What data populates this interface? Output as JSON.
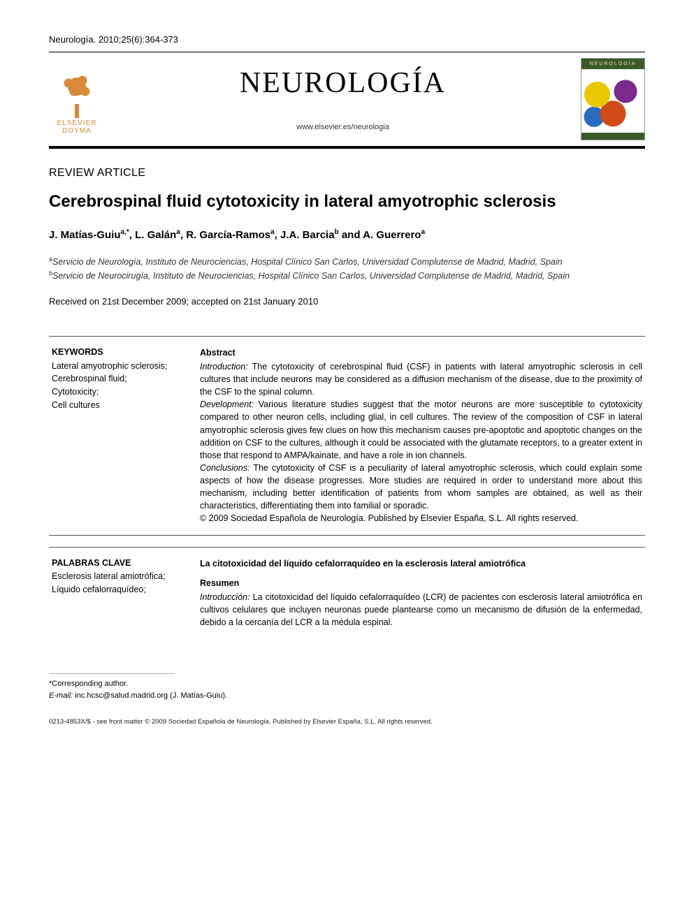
{
  "citation": "Neurología. 2010;25(6):364-373",
  "publisher": {
    "name_line1": "ELSEVIER",
    "name_line2": "DOYMA",
    "logo_color": "#d88a3a"
  },
  "journal": {
    "title": "NEUROLOGÍA",
    "url": "www.elsevier.es/neurologia",
    "cover_label": "NEUROLOGÍA"
  },
  "article_type": "REVIEW ARTICLE",
  "article_title": "Cerebrospinal fluid cytotoxicity in lateral amyotrophic sclerosis",
  "authors_html": "J. Matías-Guiu",
  "authors": [
    {
      "name": "J. Matías-Guiu",
      "sup": "a,*"
    },
    {
      "name": "L. Galán",
      "sup": "a"
    },
    {
      "name": "R. García-Ramos",
      "sup": "a"
    },
    {
      "name": "J.A. Barcia",
      "sup": "b"
    },
    {
      "name": "A. Guerrero",
      "sup": "a"
    }
  ],
  "affiliations": [
    {
      "sup": "a",
      "text": "Servicio de Neurología, Instituto de Neurociencias, Hospital Clínico San Carlos, Universidad Complutense de Madrid, Madrid, Spain"
    },
    {
      "sup": "b",
      "text": "Servicio de Neurocirugía, Instituto de Neurociencias, Hospital Clínico San Carlos, Universidad Complutense de Madrid, Madrid, Spain"
    }
  ],
  "dates": "Received on 21st December 2009; accepted on 21st January 2010",
  "keywords": {
    "heading": "KEYWORDS",
    "items": "Lateral amyotrophic sclerosis;\nCerebrospinal fluid;\nCytotoxicity;\nCell cultures"
  },
  "abstract": {
    "heading": "Abstract",
    "intro_label": "Introduction:",
    "intro_text": " The cytotoxicity of cerebrospinal fluid (CSF) in patients with lateral amyotrophic sclerosis in cell cultures that include neurons may be considered as a diffusion mechanism of the disease, due to the proximity of the CSF to the spinal column.",
    "dev_label": "Development:",
    "dev_text": " Various literature studies suggest that the motor neurons are more susceptible to cytotoxicity compared to other neuron cells, including glial, in cell cultures. The review of the composition of CSF in lateral amyotrophic sclerosis gives few clues on how this mechanism causes pre-apoptotic and apoptotic changes on the addition on CSF to the cultures, although it could be associated with the glutamate receptors, to a greater extent in those that respond to AMPA/kainate, and have a role in ion channels.",
    "conc_label": "Conclusions:",
    "conc_text": " The cytotoxicity of CSF is a peculiarity of lateral amyotrophic sclerosis, which could explain some aspects of how the disease progresses. More studies are required in order to understand more about this mechanism, including better identification of patients from whom samples are obtained, as well as their characteristics, differentiating them into familial or sporadic.",
    "copyright": "© 2009 Sociedad Española de Neurología. Published by Elsevier España, S.L. All rights reserved."
  },
  "palabras": {
    "heading": "PALABRAS CLAVE",
    "items": "Esclerosis lateral amiotrófica;\nLíquido cefalorraquídeo;"
  },
  "abstract_es": {
    "title": "La citotoxicidad del líquido cefalorraquídeo en la esclerosis lateral amiotrófica",
    "heading": "Resumen",
    "intro_label": "Introducción:",
    "intro_text": " La citotoxicidad del líquido cefalorraquídeo (LCR) de pacientes con esclerosis lateral amiotrófica en cultivos celulares que incluyen neuronas puede plantearse como un mecanismo de difusión de la enfermedad, debido a la cercanía del LCR a la médula espinal."
  },
  "footnote": {
    "corr": "*Corresponding author.",
    "email_label": "E-mail:",
    "email": " inc.hcsc@salud.madrid.org (J. Matías-Guiu)."
  },
  "bottom_copyright": "0213-4853X/$ - see front matter © 2009 Sociedad Española de Neurología. Published by Elsevier España, S.L. All rights reserved.",
  "colors": {
    "text": "#000000",
    "rule": "#000000",
    "publisher": "#d88a3a",
    "cover_green": "#3a5a2a"
  },
  "fonts": {
    "body_pt": 10,
    "journal_title_pt": 32,
    "article_title_pt": 18,
    "authors_pt": 11.5,
    "small_pt": 8
  }
}
